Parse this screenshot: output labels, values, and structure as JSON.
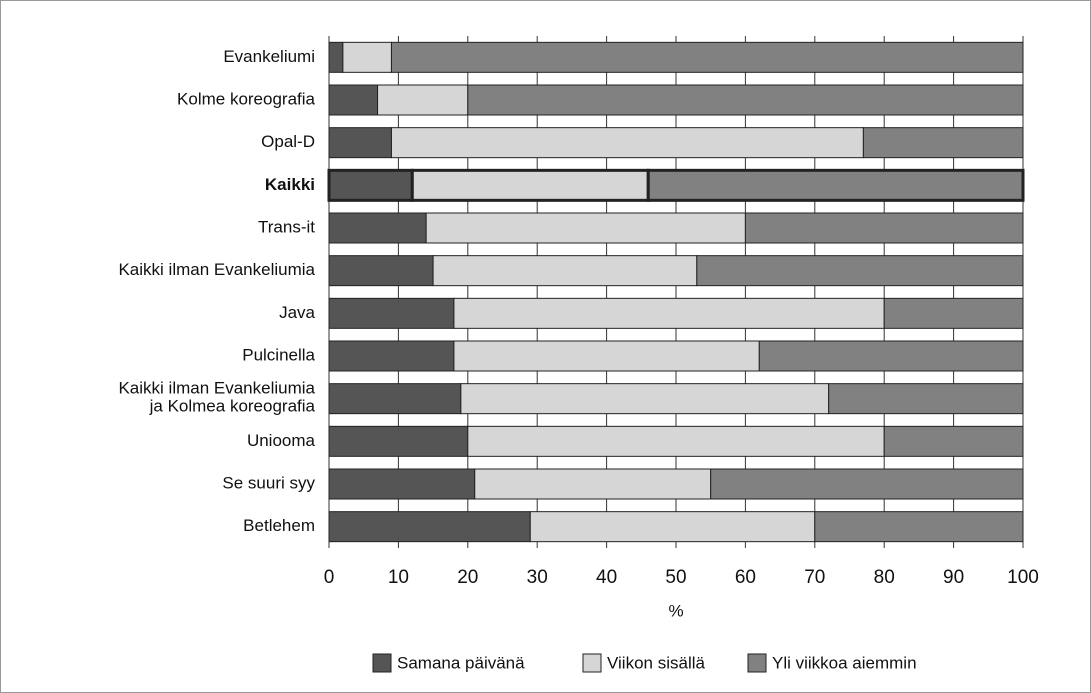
{
  "chart_data": {
    "type": "stacked-barh",
    "categories": [
      "Evankeliumi",
      "Kolme koreografia",
      "Opal-D",
      "Kaikki",
      "Trans-it",
      "Kaikki ilman Evankeliumia",
      "Java",
      "Pulcinella",
      "Kaikki ilman Evankeliumia\nja Kolmea koreografia",
      "Uniooma",
      "Se suuri syy",
      "Betlehem"
    ],
    "series": [
      {
        "name": "Samana päivänä",
        "color": "#555555",
        "values": [
          2,
          7,
          9,
          12,
          14,
          15,
          18,
          18,
          19,
          20,
          21,
          29
        ]
      },
      {
        "name": "Viikon sisällä",
        "color": "#d6d6d6",
        "values": [
          7,
          13,
          68,
          34,
          46,
          38,
          62,
          44,
          53,
          60,
          34,
          41
        ]
      },
      {
        "name": "Yli viikkoa aiemmin",
        "color": "#818181",
        "values": [
          91,
          80,
          23,
          54,
          40,
          47,
          20,
          38,
          28,
          20,
          45,
          30
        ]
      }
    ],
    "xlabel": "%",
    "xlim": [
      0,
      100
    ],
    "xticks": [
      0,
      10,
      20,
      30,
      40,
      50,
      60,
      70,
      80,
      90,
      100
    ],
    "grid": true,
    "legend": "bottom"
  }
}
